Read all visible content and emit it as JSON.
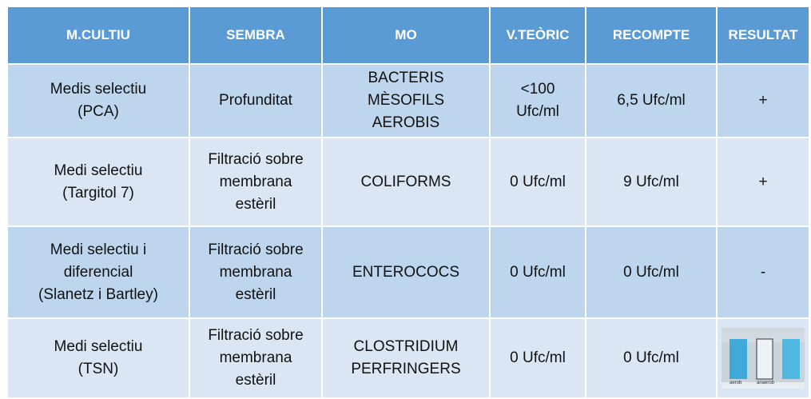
{
  "table": {
    "headers": [
      "M.CULTIU",
      "SEMBRA",
      "MO",
      "V.TEÒRIC",
      "RECOMPTE",
      "RESULTAT"
    ],
    "rows": [
      [
        [
          "Medis selectiu",
          "(PCA)"
        ],
        [
          "Profunditat"
        ],
        [
          "BACTERIS",
          "MÈSOFILS",
          "AEROBIS"
        ],
        [
          "<100",
          "Ufc/ml"
        ],
        [
          "6,5 Ufc/ml"
        ],
        [
          "+"
        ]
      ],
      [
        [
          "Medi selectiu",
          "(Targitol 7)"
        ],
        [
          "Filtració sobre",
          "membrana",
          "estèril"
        ],
        [
          "COLIFORMS"
        ],
        [
          "0 Ufc/ml"
        ],
        [
          "9 Ufc/ml"
        ],
        [
          "+"
        ]
      ],
      [
        [
          "Medi selectiu i",
          "diferencial",
          "(Slanetz i Bartley)"
        ],
        [
          "Filtració sobre",
          "membrana",
          "estèril"
        ],
        [
          "ENTEROCOCS"
        ],
        [
          "0 Ufc/ml"
        ],
        [
          "0 Ufc/ml"
        ],
        [
          "-"
        ]
      ],
      [
        [
          "Medi selectiu",
          "(TSN)"
        ],
        [
          "Filtració sobre",
          "membrana",
          "estèril"
        ],
        [
          "CLOSTRIDIUM",
          "PERFRINGERS"
        ],
        [
          "0 Ufc/ml"
        ],
        [
          "0 Ufc/ml"
        ],
        {
          "labels": [
            "aerob",
            "anaerob"
          ]
        }
      ]
    ]
  }
}
